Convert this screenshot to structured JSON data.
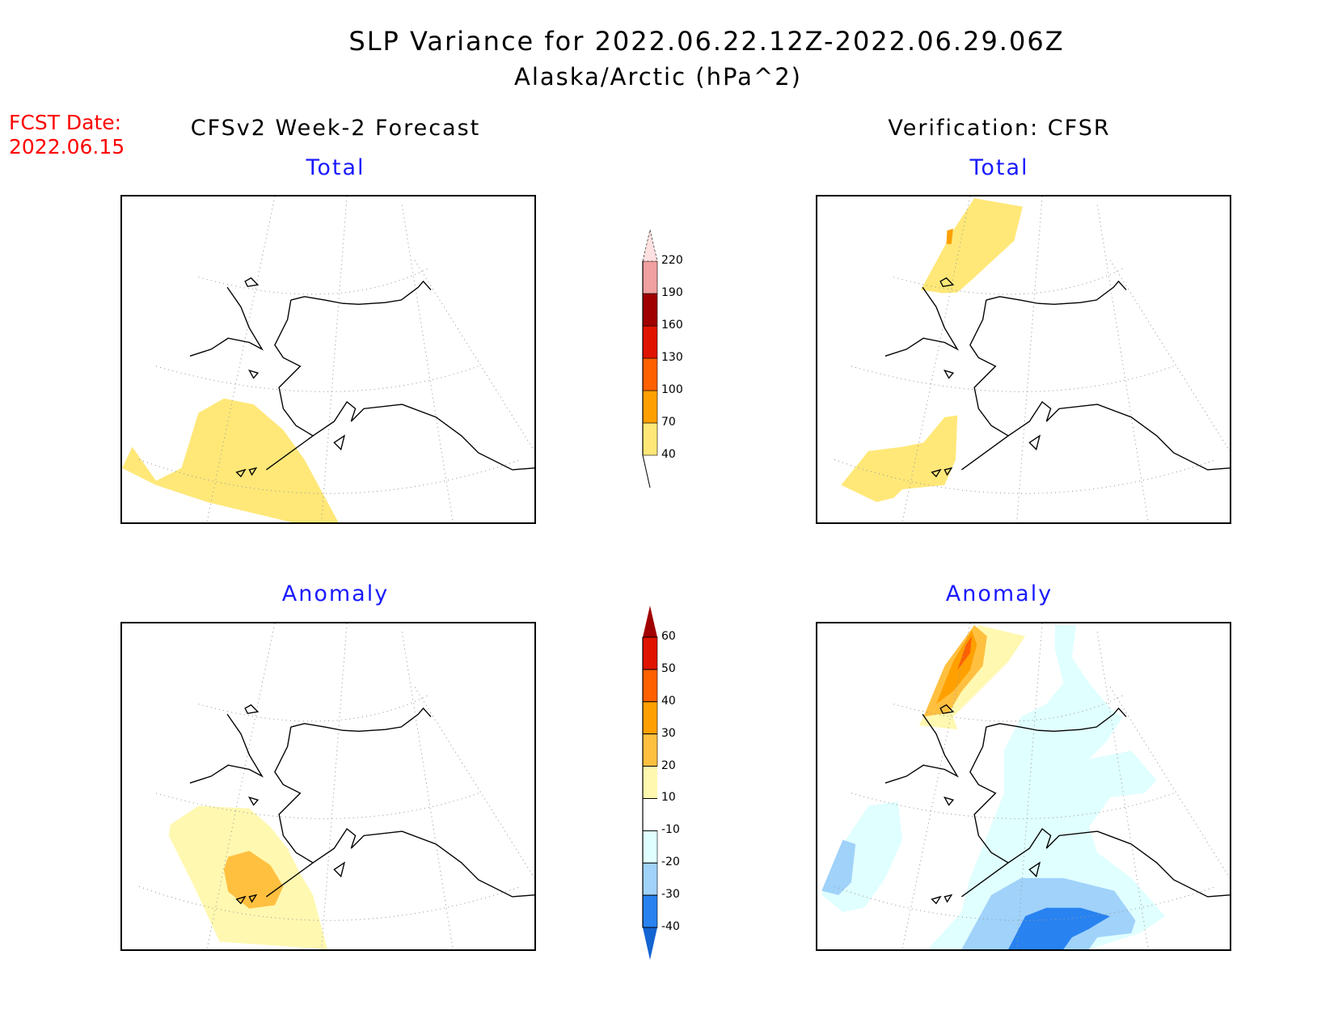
{
  "title": "SLP Variance for 2022.06.22.12Z-2022.06.29.06Z",
  "subtitle": "Alaska/Arctic (hPa^2)",
  "fcst_label": "FCST Date:",
  "fcst_date": "2022.06.15",
  "left_header": "CFSv2 Week-2 Forecast",
  "right_header": "Verification: CFSR",
  "panels": {
    "total": "Total",
    "anomaly": "Anomaly"
  },
  "chart_data": [
    {
      "type": "heatmap",
      "title": "CFSv2 Week-2 Forecast - Total",
      "colorbar": "total",
      "features": "yellow 40-70 region over Bering Sea / Aleutians (SW)"
    },
    {
      "type": "heatmap",
      "title": "Verification: CFSR - Total",
      "colorbar": "total",
      "features": "40-70 regions over Arctic north of Chukotka and over Bering Sea; small 70-100 spot north"
    },
    {
      "type": "heatmap",
      "title": "CFSv2 Week-2 Forecast - Anomaly",
      "colorbar": "anomaly",
      "features": "10-20 region over Bering Sea with 20-30 core near Aleutians"
    },
    {
      "type": "heatmap",
      "title": "Verification: CFSR - Anomaly",
      "colorbar": "anomaly",
      "features": "positive up to 40-50 north of Chukotka; broad -10 to -20 over Alaska; -30 to -40 core over Gulf of Alaska"
    }
  ],
  "colorbars": {
    "total": {
      "levels": [
        "40",
        "70",
        "100",
        "130",
        "160",
        "190",
        "220"
      ],
      "colors": [
        "#ffe878",
        "#ffa000",
        "#ff6000",
        "#e01400",
        "#a00000",
        "#f0a0a0",
        "#ffe0e0"
      ]
    },
    "anomaly": {
      "levels": [
        "60",
        "50",
        "40",
        "30",
        "20",
        "10",
        "-10",
        "-20",
        "-30",
        "-40"
      ],
      "colors": [
        "#a00000",
        "#e01400",
        "#ff6000",
        "#ffa000",
        "#ffc040",
        "#fff8b0",
        "#ffffff",
        "#e0ffff",
        "#a0d2fa",
        "#2882f0",
        "#1464d2"
      ]
    }
  }
}
